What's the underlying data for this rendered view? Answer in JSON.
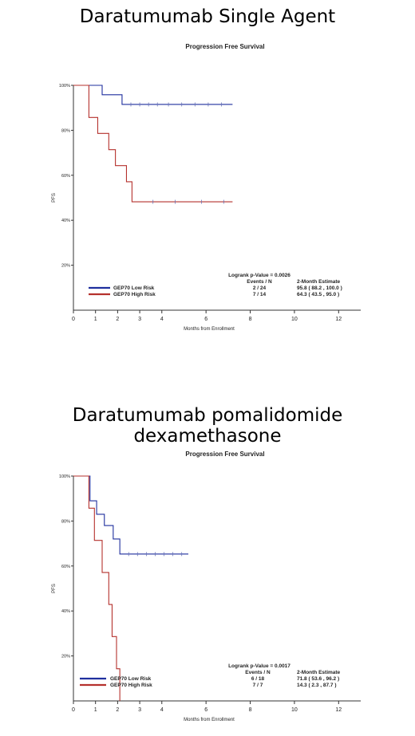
{
  "headings": [
    "Daratumumab Single Agent",
    "Daratumumab pomalidomide dexamethasone"
  ],
  "colors": {
    "low": "#1f2f9e",
    "high": "#b5312d",
    "axis": "#333333",
    "tick": "#6a75b8"
  },
  "chart_data": [
    {
      "type": "line",
      "step": true,
      "title": "Progression Free Survival",
      "xlabel": "Months from Enrollment",
      "ylabel": "PFS",
      "xlim": [
        0,
        13
      ],
      "ylim": [
        0,
        100
      ],
      "x_ticks": [
        0,
        1,
        2,
        3,
        4,
        6,
        8,
        10,
        12
      ],
      "y_ticks": [
        20,
        40,
        60,
        80,
        100
      ],
      "y_tick_labels": [
        "20%",
        "40%",
        "60%",
        "80%",
        "100%"
      ],
      "logrank": "Logrank p-Value = 0.0026",
      "table_headers": [
        "Events / N",
        "2-Month Estimate"
      ],
      "series": [
        {
          "name": "GEP70 Low Risk",
          "events": "2 / 24",
          "estimate": "95.8 ( 88.2 , 100.0 )",
          "x": [
            0,
            1.3,
            2.2,
            7.2
          ],
          "y": [
            100,
            95.8,
            91.5,
            91.5
          ],
          "censor_x": [
            2.6,
            3.0,
            3.4,
            3.8,
            4.3,
            4.9,
            5.5,
            6.1,
            6.7
          ]
        },
        {
          "name": "GEP70 High Risk",
          "events": "7 / 14",
          "estimate": "64.3 ( 43.5 , 95.0 )",
          "x": [
            0,
            0.7,
            1.1,
            1.6,
            1.9,
            2.4,
            2.65,
            7.2
          ],
          "y": [
            100,
            85.7,
            78.6,
            71.4,
            64.3,
            57.1,
            48.2,
            48.2
          ],
          "censor_x": [
            3.6,
            4.6,
            5.8,
            6.8
          ]
        }
      ]
    },
    {
      "type": "line",
      "step": true,
      "title": "Progression Free Survival",
      "xlabel": "Months from Enrollment",
      "ylabel": "PFS",
      "xlim": [
        0,
        13
      ],
      "ylim": [
        0,
        100
      ],
      "x_ticks": [
        0,
        1,
        2,
        3,
        4,
        6,
        8,
        10,
        12
      ],
      "y_ticks": [
        20,
        40,
        60,
        80,
        100
      ],
      "y_tick_labels": [
        "20%",
        "40%",
        "60%",
        "80%",
        "100%"
      ],
      "logrank": "Logrank p-Value = 0.0017",
      "table_headers": [
        "Events / N",
        "2-Month Estimate"
      ],
      "series": [
        {
          "name": "GEP70 Low Risk",
          "events": "6 / 18",
          "estimate": "71.8 ( 53.6 , 96.2 )",
          "x": [
            0,
            0.75,
            1.05,
            1.4,
            1.8,
            2.1,
            5.2
          ],
          "y": [
            100,
            89,
            83,
            78,
            72,
            65.3,
            65.3
          ],
          "censor_x": [
            2.5,
            2.9,
            3.3,
            3.7,
            4.1,
            4.5,
            4.9
          ]
        },
        {
          "name": "GEP70 High Risk",
          "events": "7 / 7",
          "estimate": "14.3 ( 2.3 , 87.7 )",
          "x": [
            0,
            0.7,
            0.95,
            1.3,
            1.6,
            1.75,
            1.95,
            2.1
          ],
          "y": [
            100,
            85.7,
            71.4,
            57.1,
            42.9,
            28.6,
            14.3,
            0
          ],
          "censor_x": []
        }
      ]
    }
  ]
}
